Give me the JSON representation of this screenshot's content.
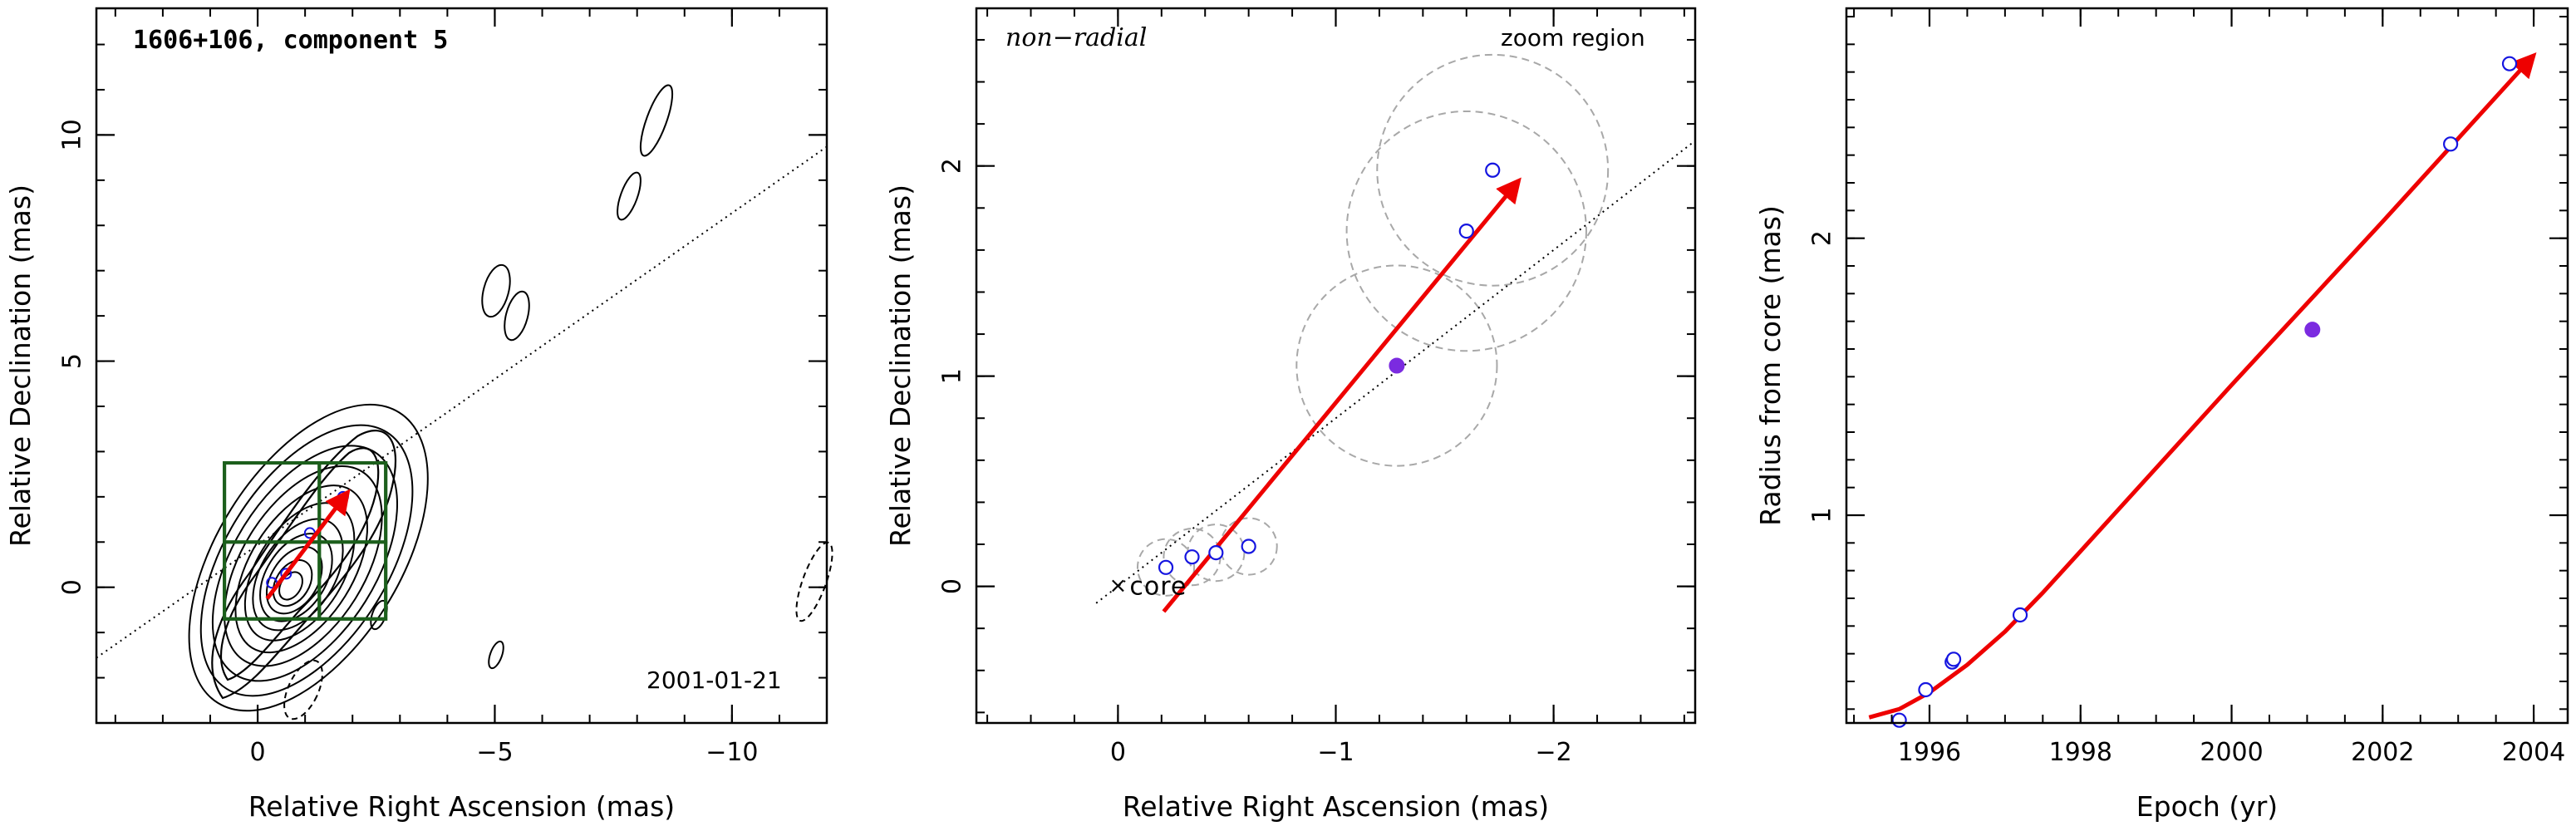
{
  "colors": {
    "red": "#ee0000",
    "blue_open": "#1515e0",
    "purple_filled": "#7b2be0",
    "green_box": "#1c5f1c",
    "gray_dashed": "#a8a8a8",
    "contour": "#000000"
  },
  "chart_data": [
    {
      "type": "scatter",
      "panel": "left",
      "annotation_title": "1606+106, component 5",
      "annotation_date": "2001-01-21",
      "xlabel": "Relative Right Ascension (mas)",
      "ylabel": "Relative Declination (mas)",
      "xlim": [
        3.4,
        -12.0
      ],
      "ylim": [
        -3.0,
        12.8
      ],
      "x_ticks": [
        0,
        -5,
        -10
      ],
      "x_tick_labels": [
        "0",
        "−5",
        "−10"
      ],
      "y_ticks": [
        0,
        5,
        10
      ],
      "y_tick_labels": [
        "0",
        "5",
        "10"
      ],
      "minor_x_step": 1,
      "minor_y_step": 1,
      "series": [
        {
          "points": [
            {
              "x": -0.3,
              "y": 0.1
            },
            {
              "x": -0.6,
              "y": 0.3
            },
            {
              "x": -1.1,
              "y": 1.2
            },
            {
              "x": -1.8,
              "y": 2.0
            }
          ]
        }
      ],
      "trajectory_line": {
        "x": [
          3.4,
          -12.0
        ],
        "y": [
          -1.56,
          9.74
        ]
      },
      "motion_vector": {
        "from": [
          -0.2,
          -0.25
        ],
        "to": [
          -1.9,
          2.1
        ]
      },
      "zoom_boxes": [
        {
          "x0": 0.7,
          "x1": -2.7,
          "y0": -0.7,
          "y1": 2.75
        },
        {
          "x0": 0.7,
          "x1": -1.3,
          "y0": -0.7,
          "y1": 1.0
        },
        {
          "x0": -1.3,
          "x1": -2.7,
          "y0": -0.7,
          "y1": 1.0
        },
        {
          "x0": 0.7,
          "x1": -1.3,
          "y0": 1.0,
          "y1": 2.75
        },
        {
          "x0": -1.3,
          "x1": -2.7,
          "y0": 1.0,
          "y1": 2.75
        }
      ],
      "grid": false
    },
    {
      "type": "scatter",
      "panel": "middle",
      "annotation_left": "non−radial",
      "annotation_right": "zoom region",
      "core_label": "core",
      "xlabel": "Relative Right Ascension (mas)",
      "ylabel": "Relative Declination (mas)",
      "xlim": [
        0.65,
        -2.65
      ],
      "ylim": [
        -0.65,
        2.75
      ],
      "x_ticks": [
        0,
        -1,
        -2
      ],
      "x_tick_labels": [
        "0",
        "−1",
        "−2"
      ],
      "y_ticks": [
        0,
        1,
        2
      ],
      "y_tick_labels": [
        "0",
        "1",
        "2"
      ],
      "minor_x_step": 0.2,
      "minor_y_step": 0.2,
      "series": [
        {
          "name": "",
          "marker": "open",
          "points": [
            {
              "x": -0.22,
              "y": 0.09
            },
            {
              "x": -0.34,
              "y": 0.14
            },
            {
              "x": -0.45,
              "y": 0.16
            },
            {
              "x": -0.6,
              "y": 0.19
            },
            {
              "x": -1.6,
              "y": 1.69
            },
            {
              "x": -1.72,
              "y": 1.98
            }
          ]
        },
        {
          "name": "",
          "marker": "filled",
          "points": [
            {
              "x": -1.28,
              "y": 1.05
            }
          ]
        }
      ],
      "error_circles": [
        {
          "x": -0.22,
          "y": 0.09,
          "r": 0.13
        },
        {
          "x": -0.34,
          "y": 0.14,
          "r": 0.13
        },
        {
          "x": -0.45,
          "y": 0.16,
          "r": 0.13
        },
        {
          "x": -0.6,
          "y": 0.19,
          "r": 0.13
        },
        {
          "x": -1.28,
          "y": 1.05,
          "r": 0.46
        },
        {
          "x": -1.6,
          "y": 1.69,
          "r": 0.55
        },
        {
          "x": -1.72,
          "y": 1.98,
          "r": 0.53
        }
      ],
      "trajectory_line": {
        "x": [
          0.1,
          -2.65
        ],
        "y": [
          -0.08,
          2.12
        ]
      },
      "motion_vector": {
        "from": [
          -0.21,
          -0.12
        ],
        "to": [
          -1.84,
          1.93
        ]
      },
      "core_marker": {
        "x": 0,
        "y": 0
      },
      "grid": false
    },
    {
      "type": "scatter",
      "panel": "right",
      "xlabel": "Epoch (yr)",
      "ylabel": "Radius from core (mas)",
      "xlim": [
        1994.9,
        2004.45
      ],
      "ylim": [
        0.25,
        2.83
      ],
      "x_ticks": [
        1996,
        1998,
        2000,
        2002,
        2004
      ],
      "x_tick_labels": [
        "1996",
        "1998",
        "2000",
        "2002",
        "2004"
      ],
      "y_ticks": [
        1,
        2
      ],
      "y_tick_labels": [
        "1",
        "2"
      ],
      "minor_x_step": 0.5,
      "minor_y_step": 0.1,
      "series": [
        {
          "name": "",
          "marker": "open",
          "points": [
            {
              "x": 1995.6,
              "y": 0.26
            },
            {
              "x": 1995.95,
              "y": 0.37
            },
            {
              "x": 1996.3,
              "y": 0.47
            },
            {
              "x": 1996.32,
              "y": 0.48
            },
            {
              "x": 1997.2,
              "y": 0.64
            },
            {
              "x": 2002.9,
              "y": 2.34
            },
            {
              "x": 2003.68,
              "y": 2.63
            }
          ]
        },
        {
          "name": "",
          "marker": "filled",
          "points": [
            {
              "x": 2001.07,
              "y": 1.67
            }
          ]
        }
      ],
      "fit_curve": {
        "x": [
          1995.2,
          1995.6,
          1996.0,
          1996.5,
          1997.0,
          1997.5,
          1998.0,
          2000.0,
          2002.0,
          2004.0
        ],
        "y": [
          0.27,
          0.3,
          0.36,
          0.46,
          0.58,
          0.72,
          0.87,
          1.47,
          2.06,
          2.66
        ]
      },
      "grid": false
    }
  ]
}
